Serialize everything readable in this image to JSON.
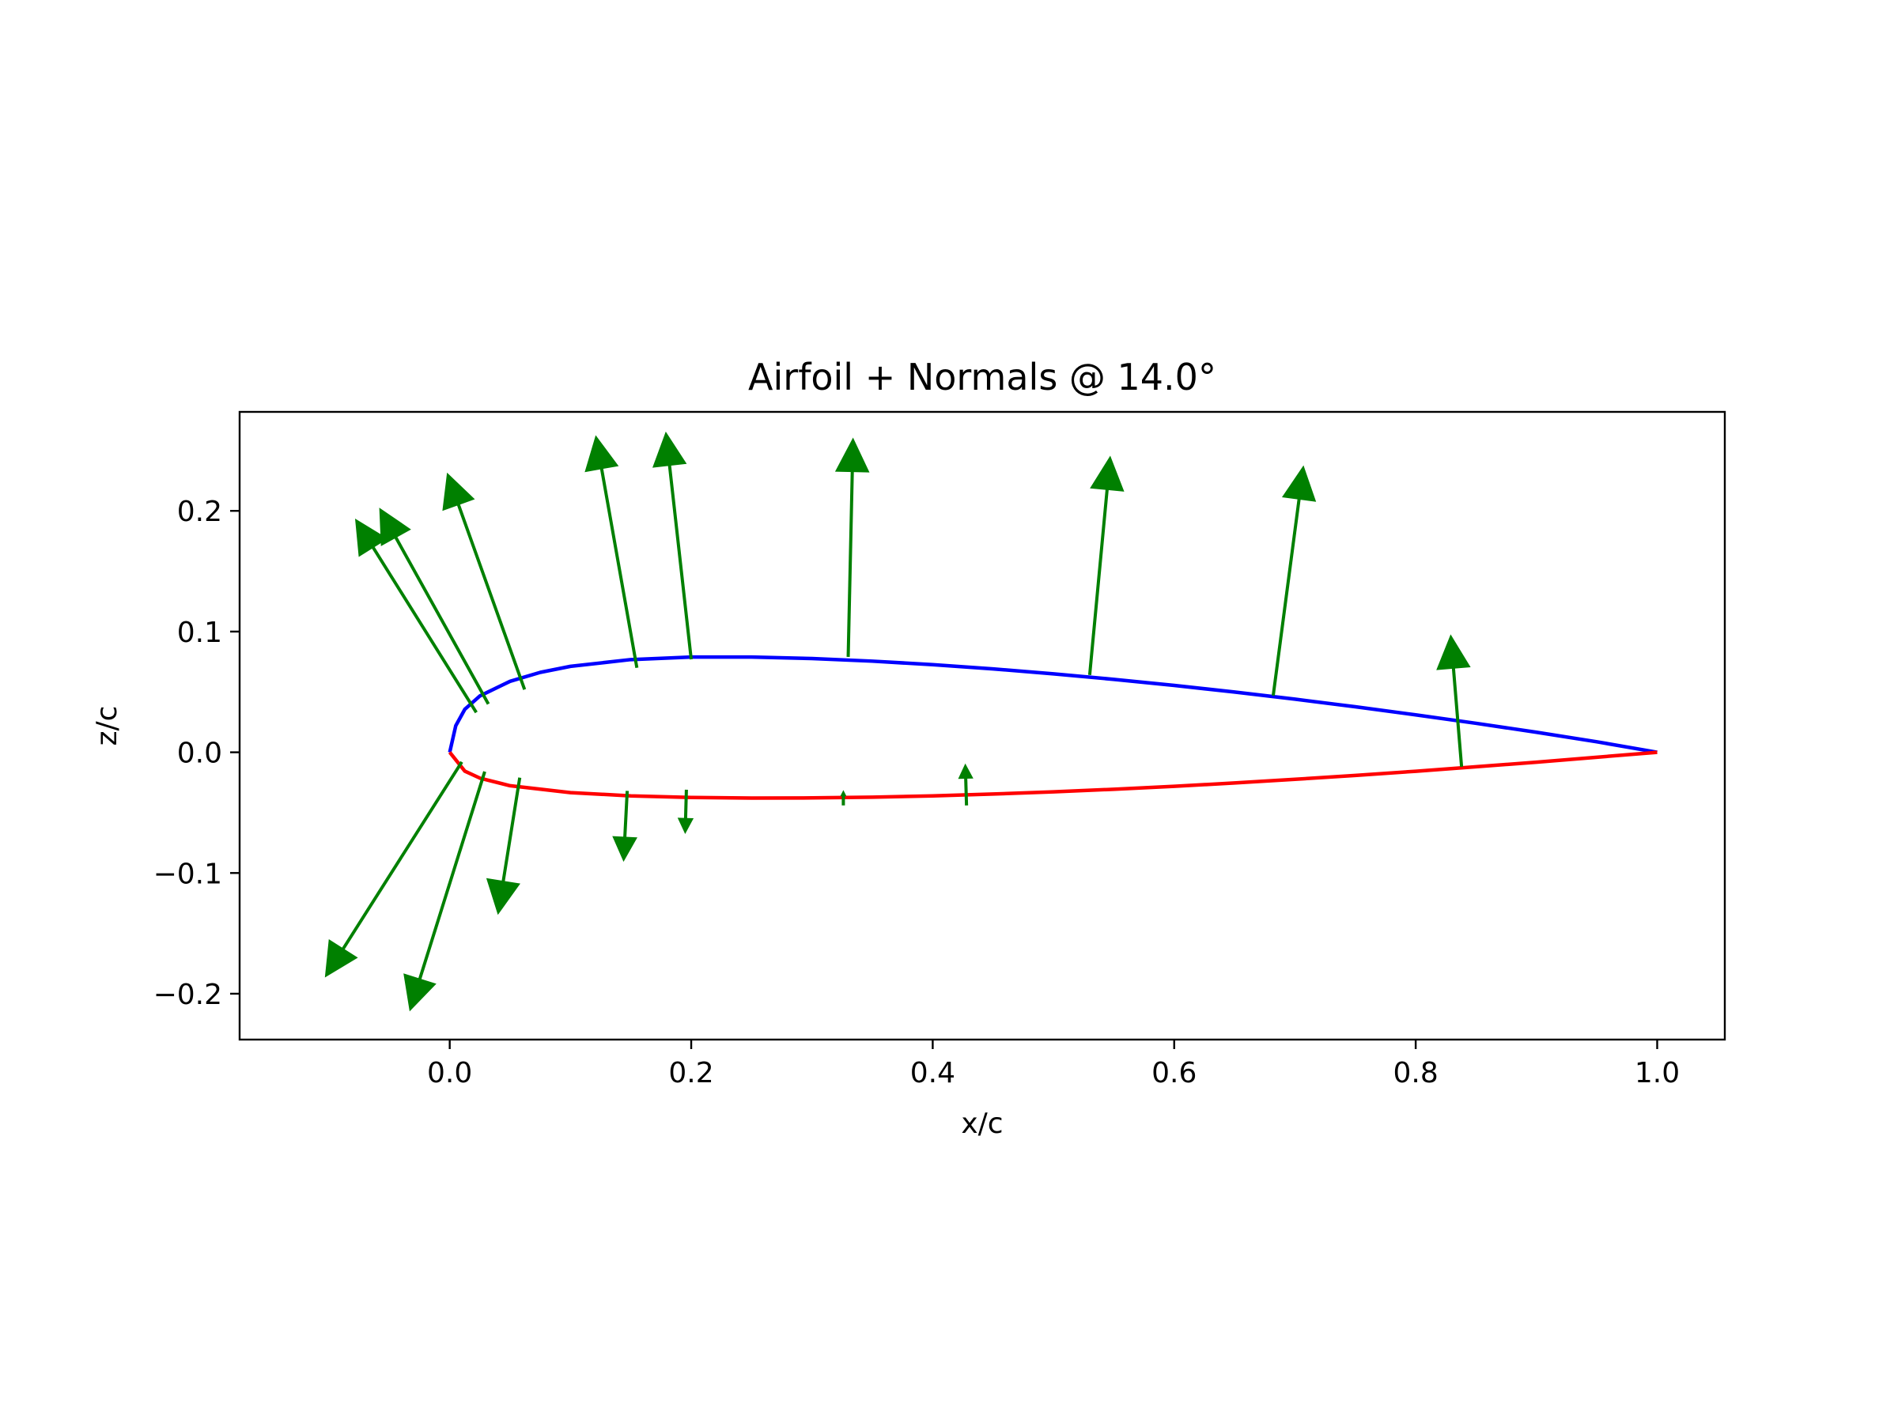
{
  "chart_data": {
    "type": "line",
    "title": "Airfoil + Normals @ 14.0°",
    "xlabel": "x/c",
    "ylabel": "z/c",
    "xlim": [
      -0.174,
      1.056
    ],
    "ylim": [
      -0.238,
      0.282
    ],
    "xticks": [
      0.0,
      0.2,
      0.4,
      0.6,
      0.8,
      1.0
    ],
    "xtick_labels": [
      "0.0",
      "0.2",
      "0.4",
      "0.6",
      "0.8",
      "1.0"
    ],
    "yticks": [
      -0.2,
      -0.1,
      0.0,
      0.1,
      0.2
    ],
    "ytick_labels": [
      "−0.2",
      "−0.1",
      "0.0",
      "0.1",
      "0.2"
    ],
    "grid": false,
    "series": [
      {
        "role": "upper-surface",
        "color": "#0000ff",
        "points": [
          [
            1.0,
            0.0
          ],
          [
            0.95,
            0.0087
          ],
          [
            0.9,
            0.0166
          ],
          [
            0.85,
            0.024
          ],
          [
            0.8,
            0.031
          ],
          [
            0.75,
            0.0377
          ],
          [
            0.7,
            0.044
          ],
          [
            0.65,
            0.0499
          ],
          [
            0.6,
            0.0554
          ],
          [
            0.55,
            0.0604
          ],
          [
            0.5,
            0.065
          ],
          [
            0.45,
            0.0691
          ],
          [
            0.4,
            0.0726
          ],
          [
            0.35,
            0.0755
          ],
          [
            0.3,
            0.0777
          ],
          [
            0.25,
            0.0789
          ],
          [
            0.2,
            0.0789
          ],
          [
            0.15,
            0.0768
          ],
          [
            0.1,
            0.0712
          ],
          [
            0.075,
            0.0662
          ],
          [
            0.05,
            0.0588
          ],
          [
            0.025,
            0.0467
          ],
          [
            0.0125,
            0.0356
          ],
          [
            0.005,
            0.022
          ],
          [
            0.0,
            0.0
          ]
        ]
      },
      {
        "role": "lower-surface",
        "color": "#ff0000",
        "points": [
          [
            0.0,
            0.0
          ],
          [
            0.0125,
            -0.0156
          ],
          [
            0.025,
            -0.0214
          ],
          [
            0.05,
            -0.0277
          ],
          [
            0.1,
            -0.0334
          ],
          [
            0.15,
            -0.0361
          ],
          [
            0.2,
            -0.0374
          ],
          [
            0.25,
            -0.0379
          ],
          [
            0.3,
            -0.0378
          ],
          [
            0.35,
            -0.0372
          ],
          [
            0.4,
            -0.0361
          ],
          [
            0.45,
            -0.0346
          ],
          [
            0.5,
            -0.0328
          ],
          [
            0.55,
            -0.0306
          ],
          [
            0.6,
            -0.0282
          ],
          [
            0.65,
            -0.0254
          ],
          [
            0.7,
            -0.0224
          ],
          [
            0.75,
            -0.0192
          ],
          [
            0.8,
            -0.0157
          ],
          [
            0.85,
            -0.012
          ],
          [
            0.9,
            -0.0082
          ],
          [
            0.95,
            -0.0041
          ],
          [
            1.0,
            0.0
          ]
        ]
      }
    ],
    "normals": {
      "color": "#008000",
      "vectors": [
        {
          "x": 0.022,
          "y": 0.033,
          "dx": -0.1,
          "dy": 0.16
        },
        {
          "x": 0.032,
          "y": 0.04,
          "dx": -0.09,
          "dy": 0.162
        },
        {
          "x": 0.062,
          "y": 0.052,
          "dx": -0.064,
          "dy": 0.179
        },
        {
          "x": 0.155,
          "y": 0.07,
          "dx": -0.034,
          "dy": 0.192
        },
        {
          "x": 0.2,
          "y": 0.077,
          "dx": -0.021,
          "dy": 0.188
        },
        {
          "x": 0.33,
          "y": 0.079,
          "dx": 0.004,
          "dy": 0.181
        },
        {
          "x": 0.53,
          "y": 0.064,
          "dx": 0.017,
          "dy": 0.181
        },
        {
          "x": 0.682,
          "y": 0.047,
          "dx": 0.025,
          "dy": 0.19
        },
        {
          "x": 0.838,
          "y": -0.012,
          "dx": -0.009,
          "dy": 0.109
        },
        {
          "x": 0.01,
          "y": -0.008,
          "dx": -0.113,
          "dy": -0.178
        },
        {
          "x": 0.029,
          "y": -0.016,
          "dx": -0.062,
          "dy": -0.198
        },
        {
          "x": 0.058,
          "y": -0.021,
          "dx": -0.018,
          "dy": -0.113
        },
        {
          "x": 0.147,
          "y": -0.032,
          "dx": -0.003,
          "dy": -0.058
        },
        {
          "x": 0.196,
          "y": -0.031,
          "dx": -0.001,
          "dy": -0.036
        },
        {
          "x": 0.326,
          "y": -0.044,
          "dx": 0.0,
          "dy": 0.012
        },
        {
          "x": 0.428,
          "y": -0.044,
          "dx": -0.001,
          "dy": 0.034
        }
      ]
    }
  }
}
